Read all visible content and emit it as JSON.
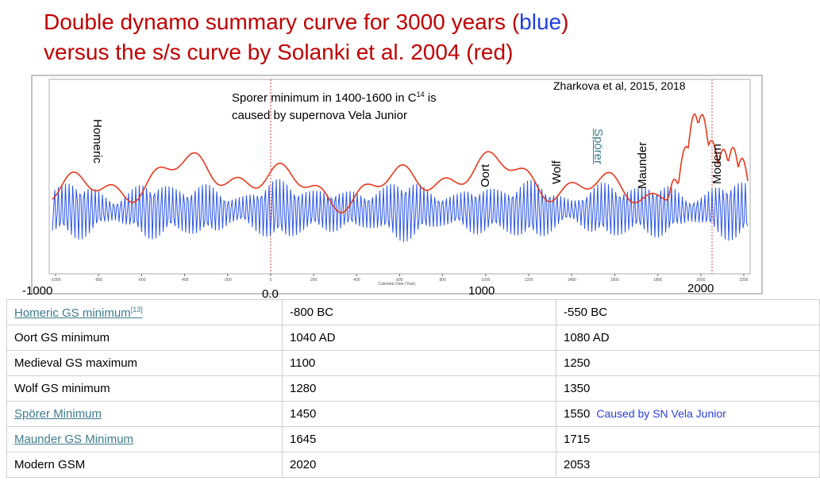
{
  "title": {
    "line1": [
      "Double dynamo summary curve for 3000 years (",
      "blue",
      ")"
    ],
    "line2": "versus the s/s curve by Solanki et al. 2004 (red)"
  },
  "figure": {
    "note": {
      "text": "Sporer minimum in 1400-1600 in C",
      "sup": "14",
      "tail": " is",
      "line2": "caused by supernova Vela Junior"
    },
    "credit": "Zharkova et al, 2015, 2018",
    "labels": [
      "Homeric",
      "Oort",
      "Wolf",
      "Spörer",
      "Maunder",
      "Modern"
    ],
    "x_axis_title": "Calendar Date (Year)",
    "small_ticks": [
      -1000,
      -800,
      -600,
      -400,
      -200,
      0,
      200,
      400,
      600,
      800,
      1000,
      1200,
      1400,
      1600,
      1800,
      2000,
      2200
    ],
    "big_ticks": [
      "-1000",
      "0.0",
      "1000",
      "2000"
    ]
  },
  "table": {
    "rows": [
      {
        "name": "Homeric GS minimum",
        "ref": "[13]",
        "start": "-800 BC",
        "end": "-550 BC",
        "link": true
      },
      {
        "name": "Oort GS minimum",
        "start": "1040 AD",
        "end": "1080 AD",
        "link": false
      },
      {
        "name": "Medieval GS maximum",
        "start": "1100",
        "end": "1250",
        "link": false
      },
      {
        "name": "Wolf GS minimum",
        "start": "1280",
        "end": "1350",
        "link": false
      },
      {
        "name": "Spörer Minimum",
        "start": "1450",
        "end": "1550",
        "note": "Caused by SN Vela Junior",
        "link": true
      },
      {
        "name": "Maunder GS Minimum",
        "start": "1645",
        "end": "1715",
        "link": true
      },
      {
        "name": "Modern GSM",
        "start": "2020",
        "end": "2053",
        "link": false
      }
    ]
  }
}
